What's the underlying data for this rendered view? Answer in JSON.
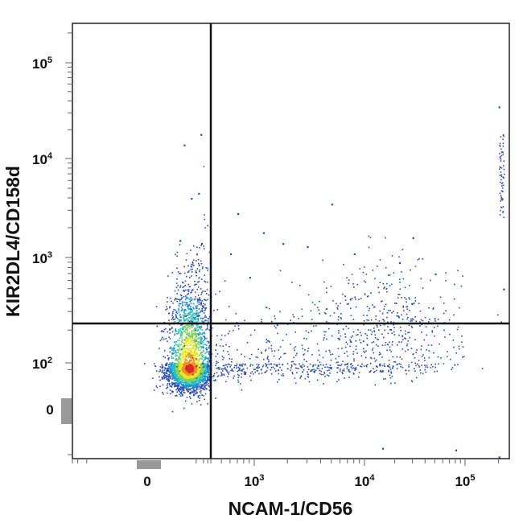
{
  "chart_data": {
    "type": "scatter",
    "title": "",
    "xlabel": "NCAM-1/CD56",
    "ylabel": "KIR2DL4/CD158d",
    "x_scale": "biexponential",
    "y_scale": "biexponential",
    "xlim": [
      -300,
      250000
    ],
    "ylim": [
      -150,
      250000
    ],
    "grid": false,
    "legend": "none",
    "x_ticks": [
      {
        "value": 0,
        "base": "0",
        "exp": ""
      },
      {
        "value": 1000,
        "base": "10",
        "exp": "3"
      },
      {
        "value": 10000,
        "base": "10",
        "exp": "4"
      },
      {
        "value": 100000,
        "base": "10",
        "exp": "5"
      }
    ],
    "y_ticks": [
      {
        "value": 0,
        "base": "0",
        "exp": ""
      },
      {
        "value": 100,
        "base": "10",
        "exp": "2"
      },
      {
        "value": 1000,
        "base": "10",
        "exp": "3"
      },
      {
        "value": 10000,
        "base": "10",
        "exp": "4"
      },
      {
        "value": 100000,
        "base": "10",
        "exp": "5"
      }
    ],
    "quadrant_gate": {
      "x": 400,
      "y": 230
    },
    "density_colors": [
      "#2a4db5",
      "#1f8fd6",
      "#27c0c0",
      "#7fd15a",
      "#e8e62a",
      "#f0901f",
      "#e22a1e"
    ],
    "populations": [
      {
        "center": [
          50,
          60
        ],
        "spread": [
          0.45,
          0.45
        ],
        "count": 3600
      },
      {
        "center": [
          18000,
          180
        ],
        "spread": [
          0.35,
          0.35
        ],
        "count": 500
      },
      {
        "center": [
          2000,
          90
        ],
        "spread": [
          0.5,
          0.3
        ],
        "count": 450
      },
      {
        "center": [
          100,
          400
        ],
        "spread": [
          0.4,
          0.4
        ],
        "count": 90
      }
    ],
    "outliers": [
      [
        150,
        18000
      ],
      [
        30,
        14000
      ],
      [
        120,
        4500
      ],
      [
        60,
        4000
      ],
      [
        20,
        1500
      ],
      [
        160,
        1400
      ],
      [
        5000,
        3500
      ],
      [
        700,
        2800
      ],
      [
        1200,
        1800
      ],
      [
        1800,
        1400
      ],
      [
        3000,
        1300
      ],
      [
        8000,
        1100
      ],
      [
        30000,
        1600
      ],
      [
        22000,
        900
      ],
      [
        50000,
        700
      ],
      [
        600,
        1100
      ],
      [
        900,
        650
      ],
      [
        200000,
        35000
      ],
      [
        210000,
        4000
      ],
      [
        220000,
        500
      ],
      [
        200000,
        -120
      ],
      [
        80000,
        -60
      ],
      [
        15000,
        -50
      ]
    ]
  }
}
